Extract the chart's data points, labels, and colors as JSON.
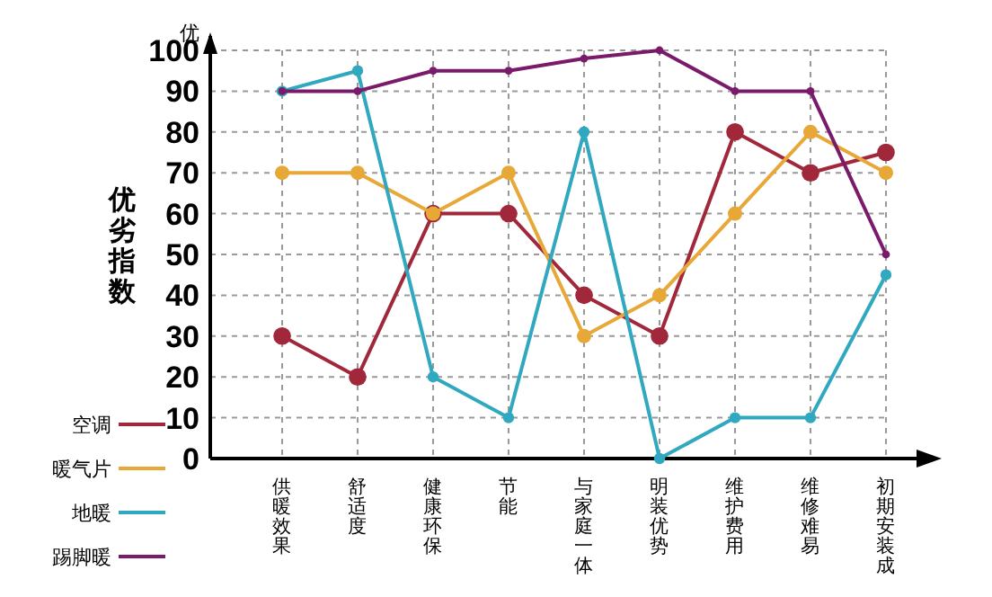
{
  "chart_data": {
    "type": "line",
    "ylabel": "优劣指数",
    "annotations": [
      "优"
    ],
    "categories": [
      "供暖效果",
      "舒适度",
      "健康环保",
      "节能",
      "与家庭一体",
      "明装优势",
      "维护费用",
      "维修难易",
      "初期安装成"
    ],
    "series": [
      {
        "name": "空调",
        "color": "#a0283a",
        "values": [
          30,
          20,
          60,
          60,
          40,
          30,
          80,
          70,
          75
        ]
      },
      {
        "name": "暖气片",
        "color": "#e8a838",
        "values": [
          70,
          70,
          60,
          70,
          30,
          40,
          60,
          80,
          70
        ]
      },
      {
        "name": "地暖",
        "color": "#30a8c0",
        "values": [
          90,
          95,
          20,
          10,
          80,
          0,
          10,
          10,
          45
        ]
      },
      {
        "name": "踢脚暖",
        "color": "#7a1a6a",
        "values": [
          90,
          90,
          95,
          95,
          98,
          100,
          90,
          90,
          50
        ]
      }
    ],
    "ylim": [
      0,
      100
    ],
    "yticks": [
      0,
      10,
      20,
      30,
      40,
      50,
      60,
      70,
      80,
      90,
      100
    ],
    "grid": true,
    "legend": "bottom left",
    "marker": "circle"
  }
}
